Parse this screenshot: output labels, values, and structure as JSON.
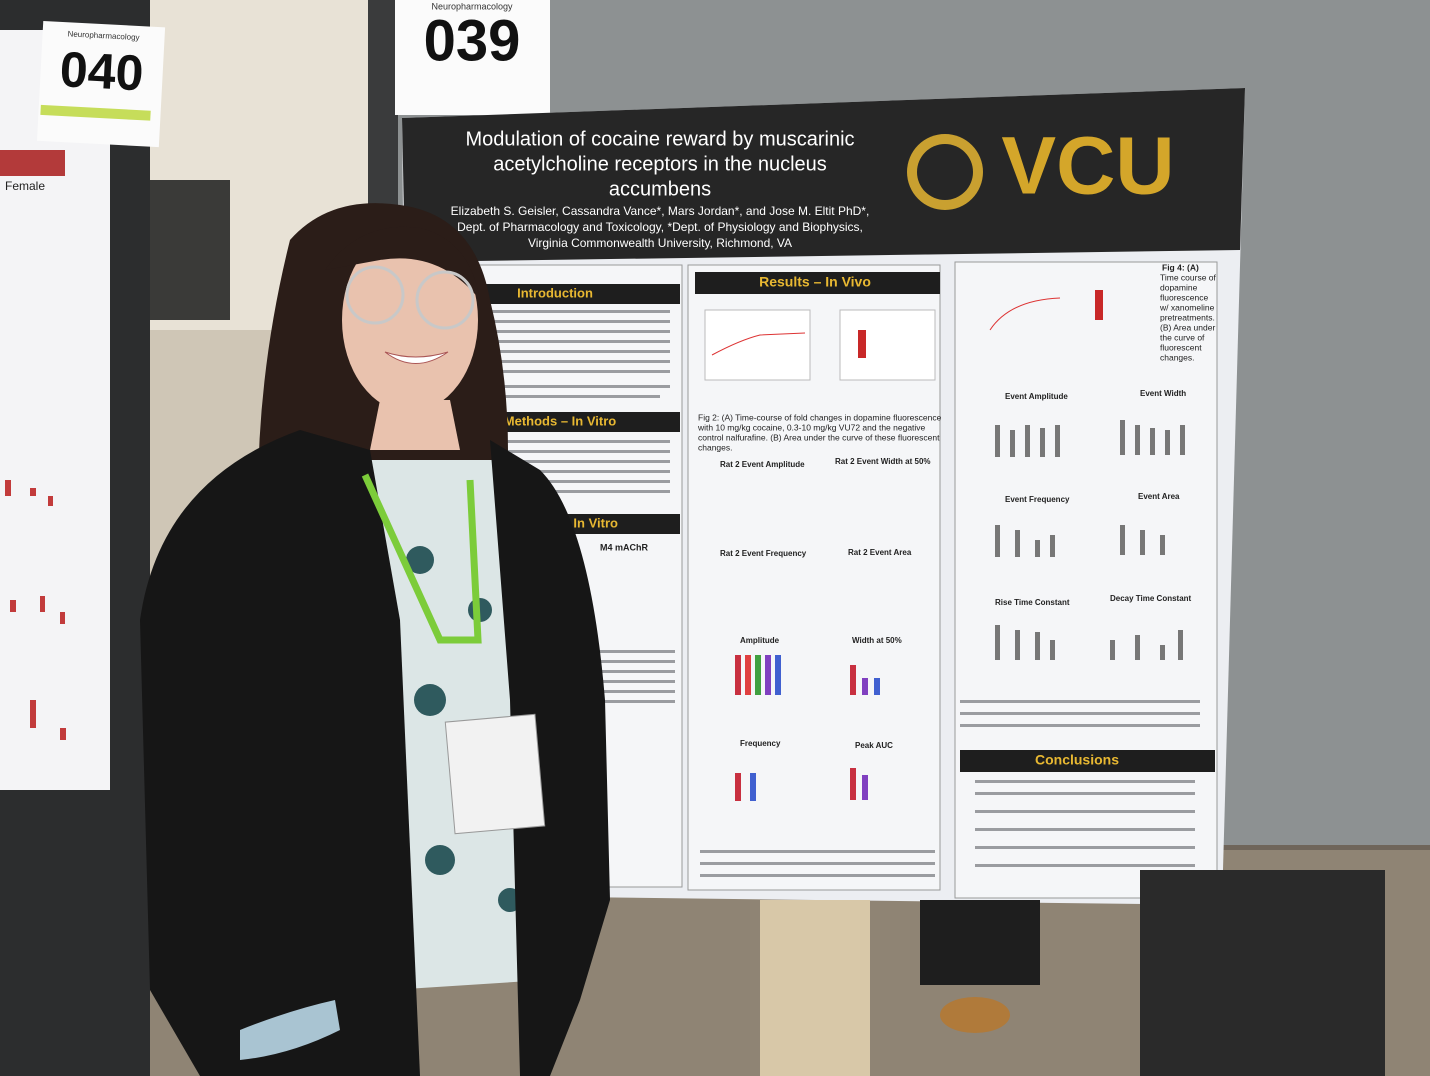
{
  "signs": [
    {
      "category": "Neuropharmacology",
      "number": "040"
    },
    {
      "category": "Neuropharmacology",
      "number": "039"
    }
  ],
  "left_poster": {
    "label": "Female"
  },
  "poster": {
    "title": [
      "Modulation of cocaine reward by muscarinic",
      "acetylcholine receptors in the nucleus",
      "accumbens"
    ],
    "authors": [
      "Elizabeth S. Geisler, Cassandra Vance*, Mars Jordan*, and Jose M. Eltit PhD*,",
      "Dept. of Pharmacology and Toxicology, *Dept. of Physiology and Biophysics,",
      "Virginia Commonwealth University, Richmond, VA"
    ],
    "logo": "VCU",
    "sections": [
      "Introduction",
      "Methods – In Vitro",
      "Results – In Vitro",
      "Results – In Vivo",
      "Conclusions"
    ],
    "fig2_caption": [
      "Fig 2: (A) Time-course of fold changes in dopamine fluorescence",
      "with 10 mg/kg cocaine, 0.3-10 mg/kg VU72 and the negative",
      "control nalfurafine. (B) Area under the curve of these fluorescent",
      "changes."
    ],
    "fig3_panels": [
      "Rat 2 Event Amplitude",
      "Rat 2 Event Width at 50%",
      "Rat 2 Event Frequency",
      "Rat 2 Event Area",
      "Amplitude",
      "Width at 50%",
      "Frequency",
      "Peak AUC"
    ],
    "fig4_caption": [
      "Fig 4: (A)",
      "Time course of",
      "dopamine",
      "fluorescence",
      "w/ xanomeline",
      "pretreatments.",
      "(B) Area under",
      "the curve of",
      "fluorescent",
      "changes."
    ],
    "fig5_panels": [
      "Event Amplitude",
      "Event Width",
      "Event Frequency",
      "Event Area",
      "Rise Time Constant",
      "Decay Time Constant"
    ],
    "in_vitro_panel": "M4 mAChR"
  }
}
